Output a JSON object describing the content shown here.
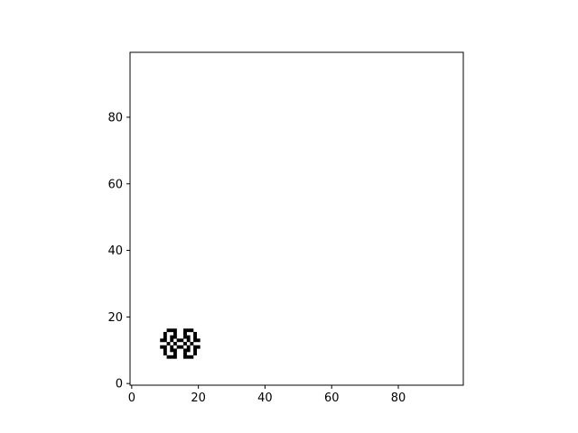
{
  "chart_data": {
    "type": "heatmap",
    "title": "",
    "xlabel": "",
    "ylabel": "",
    "xlim": [
      -0.5,
      99.5
    ],
    "ylim": [
      99.5,
      -0.5
    ],
    "y_axis_inverted": true,
    "grid": false,
    "colormap": "binary",
    "x_ticks": [
      0,
      20,
      40,
      60,
      80
    ],
    "y_ticks": [
      0,
      20,
      40,
      60,
      80
    ],
    "x_tick_labels": [
      "0",
      "20",
      "40",
      "60",
      "80"
    ],
    "y_tick_labels": [
      "0",
      "20",
      "40",
      "60",
      "80"
    ],
    "grid_size": [
      100,
      100
    ],
    "active_cells": [
      [
        11,
        8
      ],
      [
        12,
        8
      ],
      [
        13,
        8
      ],
      [
        16,
        8
      ],
      [
        17,
        8
      ],
      [
        18,
        8
      ],
      [
        10,
        9
      ],
      [
        13,
        9
      ],
      [
        16,
        9
      ],
      [
        19,
        9
      ],
      [
        10,
        10
      ],
      [
        12,
        10
      ],
      [
        13,
        10
      ],
      [
        16,
        10
      ],
      [
        17,
        10
      ],
      [
        19,
        10
      ],
      [
        9,
        11
      ],
      [
        10,
        11
      ],
      [
        12,
        11
      ],
      [
        14,
        11
      ],
      [
        15,
        11
      ],
      [
        17,
        11
      ],
      [
        19,
        11
      ],
      [
        20,
        11
      ],
      [
        11,
        12
      ],
      [
        13,
        12
      ],
      [
        16,
        12
      ],
      [
        18,
        12
      ],
      [
        9,
        13
      ],
      [
        10,
        13
      ],
      [
        12,
        13
      ],
      [
        14,
        13
      ],
      [
        15,
        13
      ],
      [
        17,
        13
      ],
      [
        19,
        13
      ],
      [
        20,
        13
      ],
      [
        10,
        14
      ],
      [
        12,
        14
      ],
      [
        13,
        14
      ],
      [
        16,
        14
      ],
      [
        17,
        14
      ],
      [
        19,
        14
      ],
      [
        10,
        15
      ],
      [
        13,
        15
      ],
      [
        16,
        15
      ],
      [
        19,
        15
      ],
      [
        11,
        16
      ],
      [
        12,
        16
      ],
      [
        13,
        16
      ],
      [
        16,
        16
      ],
      [
        17,
        16
      ],
      [
        18,
        16
      ]
    ]
  },
  "colors": {
    "active": "#000000",
    "background": "#ffffff",
    "axes": "#000000"
  }
}
